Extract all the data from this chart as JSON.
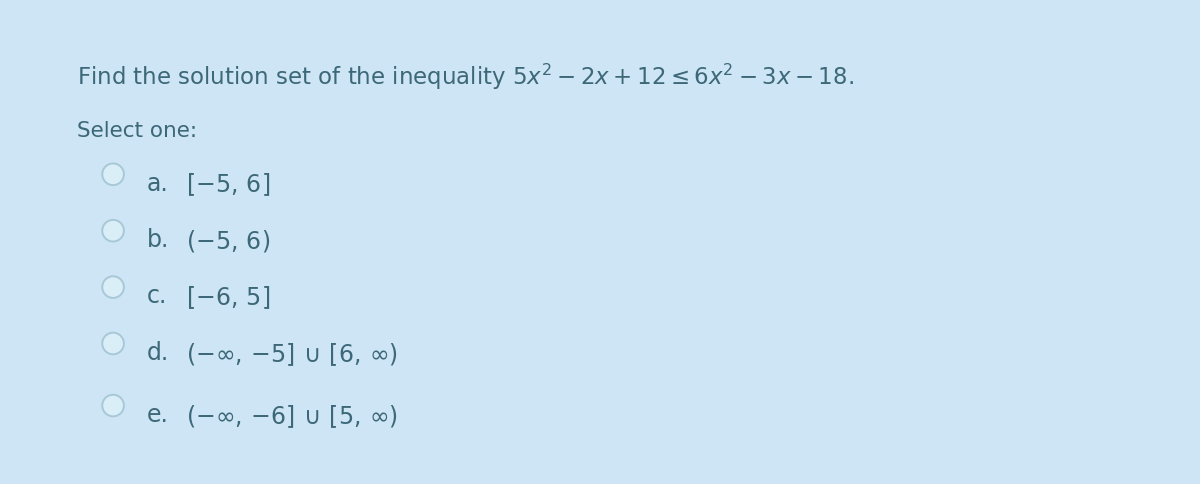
{
  "background_color": "#cde5f5",
  "text_color": "#3d6878",
  "circle_edge_color": "#a8c8d8",
  "circle_face_color": "#daeef8",
  "title_line1": "Find the solution set of the inequality ",
  "title_math": "$5x^2 - 2x + 12 \\leq 6x^2 - 3x - 18.$",
  "select_label": "Select one:",
  "options": [
    {
      "letter": "a.",
      "text": "$[{-5},\\, 6]$"
    },
    {
      "letter": "b.",
      "text": "$({-5},\\, 6)$"
    },
    {
      "letter": "c.",
      "text": "$[{-6},\\, 5]$"
    },
    {
      "letter": "d.",
      "text": "$(-\\infty,\\, {-5}]\\, \\cup\\, [6,\\, \\infty)$"
    },
    {
      "letter": "e.",
      "text": "$(-\\infty,\\, {-6}]\\, \\cup\\, [5,\\, \\infty)$"
    }
  ],
  "title_fontsize": 16.5,
  "select_fontsize": 15.5,
  "option_fontsize": 17,
  "letter_fontsize": 17,
  "outer_border_color": "#b8d0e8",
  "inner_padding": 0.038
}
